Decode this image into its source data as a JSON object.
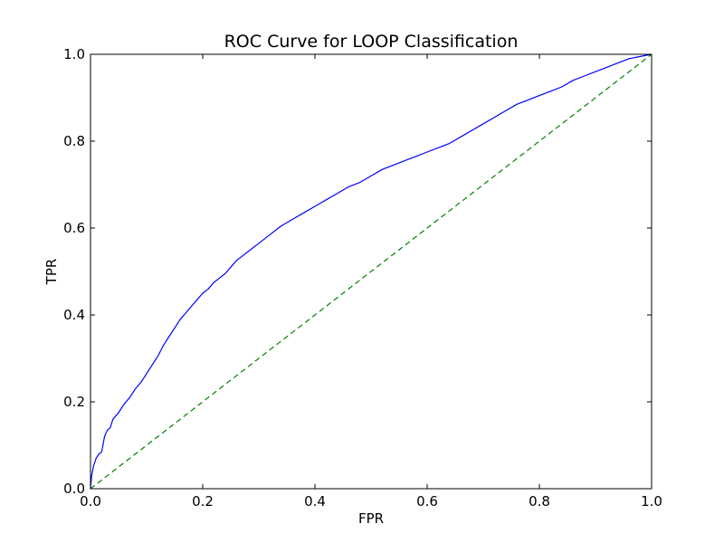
{
  "chart_data": {
    "type": "line",
    "title": "ROC Curve for LOOP Classification",
    "xlabel": "FPR",
    "ylabel": "TPR",
    "xlim": [
      0.0,
      1.0
    ],
    "ylim": [
      0.0,
      1.0
    ],
    "x_ticks": [
      "0.0",
      "0.2",
      "0.4",
      "0.6",
      "0.8",
      "1.0"
    ],
    "y_ticks": [
      "0.0",
      "0.2",
      "0.4",
      "0.6",
      "0.8",
      "1.0"
    ],
    "grid": false,
    "legend": "none",
    "series": [
      {
        "style": "solid",
        "color": "#0000ff",
        "x": [
          0.0,
          0.002,
          0.005,
          0.01,
          0.015,
          0.02,
          0.025,
          0.03,
          0.035,
          0.04,
          0.05,
          0.06,
          0.07,
          0.08,
          0.09,
          0.1,
          0.11,
          0.12,
          0.13,
          0.14,
          0.15,
          0.16,
          0.17,
          0.18,
          0.19,
          0.2,
          0.21,
          0.22,
          0.23,
          0.24,
          0.25,
          0.26,
          0.27,
          0.28,
          0.3,
          0.32,
          0.34,
          0.36,
          0.38,
          0.4,
          0.42,
          0.44,
          0.46,
          0.48,
          0.5,
          0.52,
          0.54,
          0.56,
          0.58,
          0.6,
          0.62,
          0.64,
          0.66,
          0.68,
          0.7,
          0.72,
          0.74,
          0.76,
          0.78,
          0.8,
          0.82,
          0.84,
          0.86,
          0.88,
          0.9,
          0.92,
          0.94,
          0.96,
          0.98,
          1.0
        ],
        "y": [
          0.0,
          0.03,
          0.05,
          0.07,
          0.08,
          0.085,
          0.12,
          0.135,
          0.14,
          0.16,
          0.175,
          0.195,
          0.21,
          0.23,
          0.245,
          0.265,
          0.285,
          0.305,
          0.33,
          0.35,
          0.37,
          0.39,
          0.405,
          0.42,
          0.435,
          0.45,
          0.46,
          0.475,
          0.485,
          0.495,
          0.51,
          0.525,
          0.535,
          0.545,
          0.565,
          0.585,
          0.605,
          0.62,
          0.635,
          0.65,
          0.665,
          0.68,
          0.695,
          0.705,
          0.72,
          0.735,
          0.745,
          0.755,
          0.765,
          0.775,
          0.785,
          0.795,
          0.81,
          0.825,
          0.84,
          0.855,
          0.87,
          0.885,
          0.895,
          0.905,
          0.915,
          0.925,
          0.94,
          0.95,
          0.96,
          0.97,
          0.98,
          0.99,
          0.995,
          1.0
        ]
      },
      {
        "style": "dashed",
        "color": "#008000",
        "x": [
          0.0,
          1.0
        ],
        "y": [
          0.0,
          1.0
        ]
      }
    ]
  }
}
